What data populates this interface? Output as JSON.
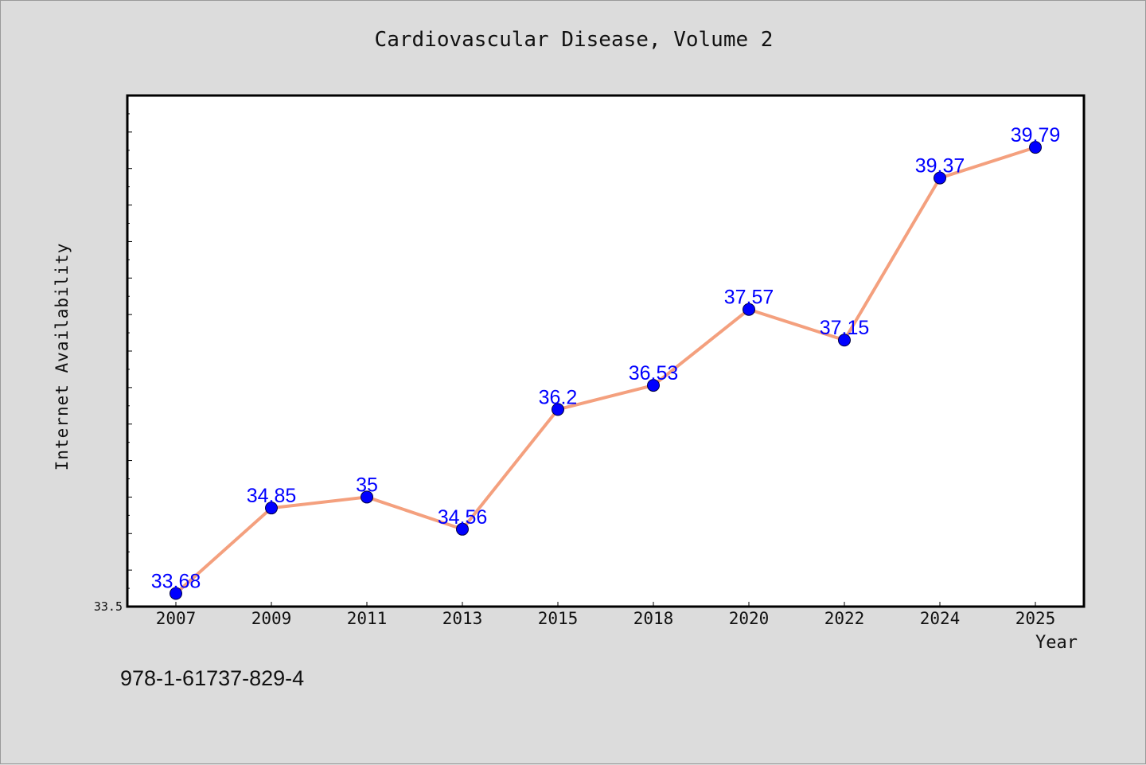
{
  "header": {
    "title": "Cardiovascular Disease, Volume 2"
  },
  "footer": {
    "isbn": "978-1-61737-829-4"
  },
  "chart_data": {
    "type": "line",
    "title": "Cardiovascular Disease, Volume 2",
    "xlabel": "Year",
    "ylabel": "Internet Availability",
    "categories": [
      "2007",
      "2009",
      "2011",
      "2013",
      "2015",
      "2018",
      "2020",
      "2022",
      "2024",
      "2025"
    ],
    "series": [
      {
        "values": [
          33.68,
          34.85,
          35,
          34.56,
          36.2,
          36.53,
          37.57,
          37.15,
          39.37,
          39.79
        ]
      }
    ],
    "value_labels": [
      "33.68",
      "34.85",
      "35",
      "34.56",
      "36.2",
      "36.53",
      "37.57",
      "37.15",
      "39.37",
      "39.79"
    ],
    "ylim": [
      33.5,
      40.5
    ],
    "yticks_labeled": [
      "33.5"
    ],
    "line_color": "#f4a07e",
    "marker_color": "#0000ff",
    "label_color": "#0000ff",
    "background": "#dcdcdc",
    "plot_background": "#ffffff",
    "grid": false,
    "legend": "none"
  }
}
